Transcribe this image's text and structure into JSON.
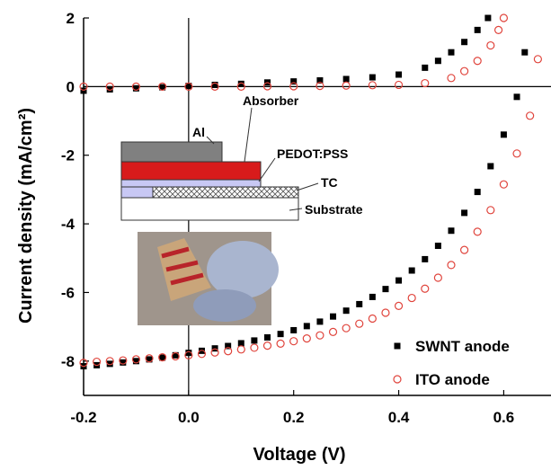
{
  "chart_data": {
    "type": "scatter",
    "x_label": "Voltage (V)",
    "y_label": "Current density (mA/cm²)",
    "xlim": [
      -0.2,
      0.69
    ],
    "ylim": [
      -9,
      2
    ],
    "xticks": [
      -0.2,
      {
        "value": 0,
        "label": "0.0"
      },
      0.2,
      0.4,
      0.6
    ],
    "yticks": [
      2,
      0,
      -2,
      -4,
      -6,
      -8
    ],
    "zero_lines": true,
    "legend": "lower right",
    "annotations": [
      "Al",
      "Absorber",
      "PEDOT:PSS",
      "TC",
      "Substrate"
    ],
    "series": [
      {
        "name": "SWNT anode",
        "color": "#000000",
        "marker": "square",
        "x": [
          -0.2,
          -0.175,
          -0.15,
          -0.125,
          -0.1,
          -0.075,
          -0.05,
          -0.025,
          0,
          0.025,
          0.05,
          0.075,
          0.1,
          0.125,
          0.15,
          0.175,
          0.2,
          0.225,
          0.25,
          0.275,
          0.3,
          0.325,
          0.35,
          0.375,
          0.4,
          0.425,
          0.45,
          0.475,
          0.5,
          0.525,
          0.55,
          0.575,
          0.6,
          0.625,
          0.64,
          -0.2,
          -0.15,
          -0.1,
          -0.05,
          0,
          0.05,
          0.1,
          0.15,
          0.2,
          0.25,
          0.3,
          0.35,
          0.4,
          0.45,
          0.475,
          0.5,
          0.525,
          0.55,
          0.57
        ],
        "values": [
          -8.15,
          -8.12,
          -8.08,
          -8.04,
          -8.0,
          -7.95,
          -7.9,
          -7.83,
          -7.76,
          -7.7,
          -7.63,
          -7.56,
          -7.48,
          -7.4,
          -7.31,
          -7.21,
          -7.1,
          -6.98,
          -6.85,
          -6.7,
          -6.53,
          -6.34,
          -6.13,
          -5.9,
          -5.65,
          -5.36,
          -5.03,
          -4.64,
          -4.2,
          -3.68,
          -3.07,
          -2.32,
          -1.4,
          -0.3,
          1.0,
          -0.12,
          -0.08,
          -0.05,
          -0.02,
          0.02,
          0.05,
          0.08,
          0.12,
          0.15,
          0.18,
          0.22,
          0.27,
          0.35,
          0.55,
          0.75,
          1.0,
          1.3,
          1.65,
          2.0
        ]
      },
      {
        "name": "ITO anode",
        "color": "#e0443c",
        "marker": "circle",
        "x": [
          -0.2,
          -0.175,
          -0.15,
          -0.125,
          -0.1,
          -0.075,
          -0.05,
          -0.025,
          0,
          0.025,
          0.05,
          0.075,
          0.1,
          0.125,
          0.15,
          0.175,
          0.2,
          0.225,
          0.25,
          0.275,
          0.3,
          0.325,
          0.35,
          0.375,
          0.4,
          0.425,
          0.45,
          0.475,
          0.5,
          0.525,
          0.55,
          0.575,
          0.6,
          0.625,
          0.65,
          0.665,
          -0.2,
          -0.15,
          -0.1,
          -0.05,
          0,
          0.05,
          0.1,
          0.15,
          0.2,
          0.25,
          0.3,
          0.35,
          0.4,
          0.45,
          0.5,
          0.525,
          0.55,
          0.575,
          0.59,
          0.6
        ],
        "values": [
          -8.05,
          -8.02,
          -8.0,
          -7.98,
          -7.95,
          -7.92,
          -7.89,
          -7.86,
          -7.83,
          -7.79,
          -7.75,
          -7.71,
          -7.66,
          -7.61,
          -7.55,
          -7.49,
          -7.42,
          -7.34,
          -7.25,
          -7.15,
          -7.04,
          -6.91,
          -6.76,
          -6.59,
          -6.39,
          -6.16,
          -5.89,
          -5.57,
          -5.2,
          -4.76,
          -4.23,
          -3.6,
          -2.85,
          -1.95,
          -0.85,
          0.8,
          0.0,
          0.0,
          0.0,
          0.0,
          0.0,
          0.0,
          0.0,
          0.01,
          0.01,
          0.02,
          0.03,
          0.04,
          0.05,
          0.1,
          0.25,
          0.45,
          0.75,
          1.2,
          1.65,
          2.0
        ]
      }
    ]
  }
}
